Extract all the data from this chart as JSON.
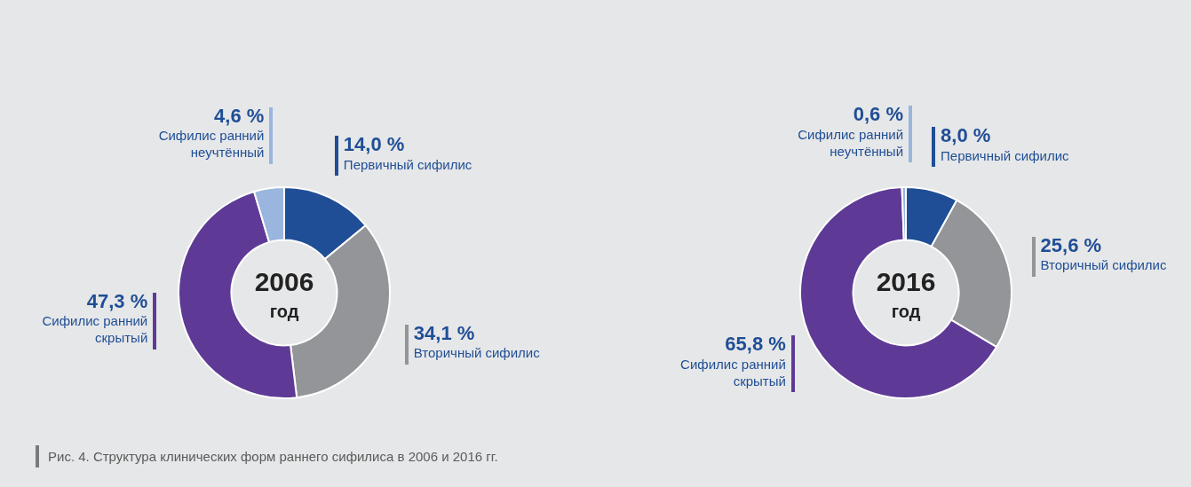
{
  "chart_data": [
    {
      "type": "donut",
      "title": "2006 год",
      "categories": [
        "Первичный сифилис",
        "Вторичный сифилис",
        "Сифилис ранний скрытый",
        "Сифилис ранний неучтённый"
      ],
      "values": [
        14.0,
        34.1,
        47.3,
        4.6
      ],
      "colors": [
        "#1f4e96",
        "#939598",
        "#5e3a96",
        "#9ab5de"
      ],
      "value_labels": [
        "14,0 %",
        "34,1 %",
        "47,3 %",
        "4,6 %"
      ],
      "legend": false,
      "annotations": [
        "Рис. 4. Структура клинических форм раннего сифилиса в 2006 и 2016 гг."
      ]
    },
    {
      "type": "donut",
      "title": "2016 год",
      "categories": [
        "Первичный сифилис",
        "Вторичный сифилис",
        "Сифилис ранний скрытый",
        "Сифилис ранний неучтённый"
      ],
      "values": [
        8.0,
        25.6,
        65.8,
        0.6
      ],
      "colors": [
        "#1f4e96",
        "#939598",
        "#5e3a96",
        "#9ab5de"
      ],
      "value_labels": [
        "8,0 %",
        "25,6 %",
        "65,8 %",
        "0,6 %"
      ],
      "legend": false
    }
  ]
}
